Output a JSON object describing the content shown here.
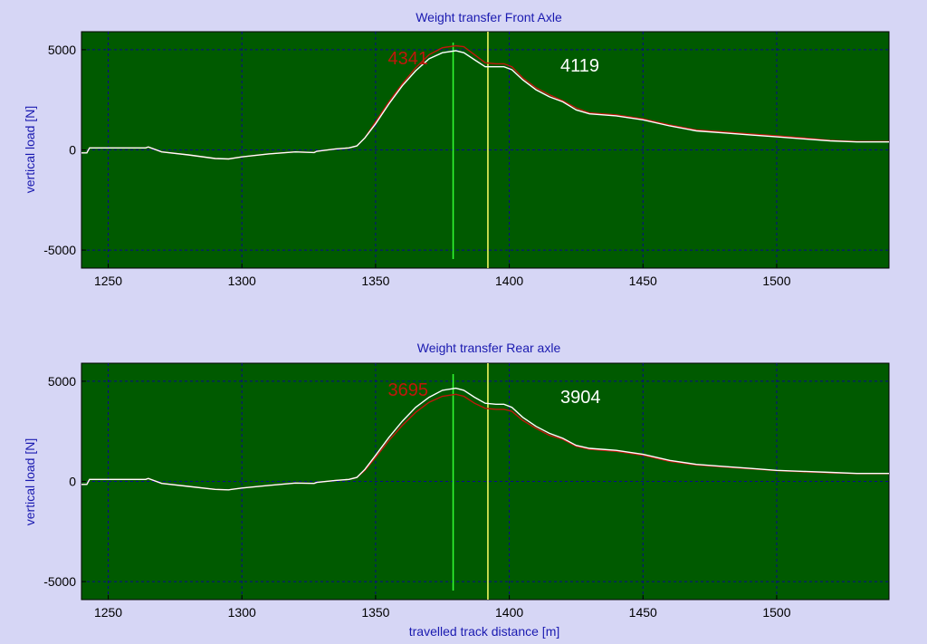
{
  "chart_data": [
    {
      "type": "line",
      "title": "Weight transfer Front Axle",
      "xlabel": "",
      "ylabel": "vertical load [N]",
      "xlim": [
        1240,
        1542
      ],
      "ylim": [
        -5900,
        5900
      ],
      "xticks": [
        1250,
        1300,
        1350,
        1400,
        1450,
        1500
      ],
      "xtick_labels": [
        "1250",
        "1300",
        "1350",
        "1400",
        "1450",
        "1500"
      ],
      "yticks": [
        5000,
        0,
        -5000
      ],
      "ytick_labels": [
        "5000",
        "0",
        "-5000"
      ],
      "grid": true,
      "colors": {
        "background": "#005a00",
        "series_white": "#ffffff",
        "series_red": "#c0170c",
        "cursor_green": "#33ff33",
        "cursor_yellow": "#ffff66"
      },
      "series": [
        {
          "color": "white",
          "x": [
            1240,
            1242,
            1243,
            1264,
            1265,
            1270,
            1280,
            1290,
            1295,
            1300,
            1310,
            1320,
            1327,
            1328,
            1335,
            1340,
            1343,
            1346,
            1350,
            1355,
            1360,
            1365,
            1370,
            1375,
            1380,
            1383,
            1387,
            1391,
            1395,
            1398,
            1401,
            1405,
            1410,
            1415,
            1420,
            1425,
            1430,
            1440,
            1450,
            1460,
            1470,
            1480,
            1490,
            1500,
            1510,
            1520,
            1530,
            1542
          ],
          "y": [
            -150,
            -150,
            100,
            100,
            150,
            -100,
            -250,
            -430,
            -450,
            -350,
            -200,
            -100,
            -130,
            -70,
            50,
            100,
            200,
            600,
            1300,
            2300,
            3200,
            3950,
            4550,
            4850,
            4950,
            4850,
            4500,
            4150,
            4150,
            4150,
            4000,
            3500,
            3000,
            2650,
            2400,
            2000,
            1800,
            1700,
            1500,
            1200,
            950,
            850,
            750,
            650,
            550,
            450,
            400,
            400
          ]
        },
        {
          "color": "red",
          "x": [
            1240,
            1242,
            1243,
            1264,
            1265,
            1270,
            1280,
            1290,
            1295,
            1300,
            1310,
            1320,
            1327,
            1328,
            1335,
            1340,
            1343,
            1346,
            1350,
            1355,
            1360,
            1365,
            1370,
            1375,
            1380,
            1383,
            1387,
            1391,
            1395,
            1398,
            1401,
            1405,
            1410,
            1415,
            1420,
            1425,
            1430,
            1440,
            1450,
            1460,
            1470,
            1480,
            1490,
            1500,
            1510,
            1520,
            1530,
            1542
          ],
          "y": [
            -150,
            -150,
            100,
            100,
            150,
            -100,
            -250,
            -430,
            -450,
            -350,
            -200,
            -100,
            -130,
            -70,
            50,
            100,
            200,
            600,
            1400,
            2400,
            3300,
            4100,
            4750,
            5100,
            5200,
            5150,
            4750,
            4350,
            4300,
            4300,
            4150,
            3600,
            3100,
            2750,
            2450,
            2100,
            1850,
            1750,
            1550,
            1250,
            1000,
            900,
            800,
            700,
            600,
            480,
            420,
            420
          ]
        }
      ],
      "cursors": [
        {
          "x": 1379,
          "color": "green",
          "label": "4341",
          "label_color": "red"
        },
        {
          "x": 1392,
          "color": "yellow",
          "label": "4119",
          "label_color": "white"
        }
      ]
    },
    {
      "type": "line",
      "title": "Weight transfer Rear axle",
      "xlabel": "travelled track distance [m]",
      "ylabel": "vertical load [N]",
      "xlim": [
        1240,
        1542
      ],
      "ylim": [
        -5900,
        5900
      ],
      "xticks": [
        1250,
        1300,
        1350,
        1400,
        1450,
        1500
      ],
      "xtick_labels": [
        "1250",
        "1300",
        "1350",
        "1400",
        "1450",
        "1500"
      ],
      "yticks": [
        5000,
        0,
        -5000
      ],
      "ytick_labels": [
        "5000",
        "0",
        "-5000"
      ],
      "grid": true,
      "colors": {
        "background": "#005a00",
        "series_white": "#ffffff",
        "series_red": "#c0170c",
        "cursor_green": "#33ff33",
        "cursor_yellow": "#ffff66"
      },
      "series": [
        {
          "color": "white",
          "x": [
            1240,
            1242,
            1243,
            1264,
            1265,
            1270,
            1280,
            1290,
            1295,
            1300,
            1310,
            1320,
            1327,
            1328,
            1335,
            1340,
            1343,
            1346,
            1350,
            1355,
            1360,
            1365,
            1370,
            1375,
            1380,
            1383,
            1387,
            1391,
            1395,
            1398,
            1401,
            1405,
            1410,
            1415,
            1420,
            1425,
            1430,
            1440,
            1450,
            1460,
            1470,
            1480,
            1490,
            1500,
            1510,
            1520,
            1530,
            1542
          ],
          "y": [
            -150,
            -150,
            100,
            100,
            150,
            -100,
            -250,
            -400,
            -420,
            -330,
            -200,
            -80,
            -100,
            -50,
            50,
            100,
            200,
            600,
            1300,
            2200,
            3000,
            3700,
            4200,
            4550,
            4650,
            4550,
            4200,
            3900,
            3850,
            3850,
            3700,
            3200,
            2750,
            2400,
            2150,
            1800,
            1650,
            1550,
            1350,
            1050,
            850,
            750,
            650,
            550,
            500,
            450,
            400,
            400
          ]
        },
        {
          "color": "red",
          "x": [
            1240,
            1242,
            1243,
            1264,
            1265,
            1270,
            1280,
            1290,
            1295,
            1300,
            1310,
            1320,
            1327,
            1328,
            1335,
            1340,
            1343,
            1346,
            1350,
            1355,
            1360,
            1365,
            1370,
            1375,
            1380,
            1383,
            1387,
            1391,
            1395,
            1398,
            1401,
            1405,
            1410,
            1415,
            1420,
            1425,
            1430,
            1440,
            1450,
            1460,
            1470,
            1480,
            1490,
            1500,
            1510,
            1520,
            1530,
            1542
          ],
          "y": [
            -150,
            -150,
            100,
            100,
            150,
            -100,
            -250,
            -400,
            -420,
            -330,
            -200,
            -80,
            -100,
            -50,
            50,
            100,
            200,
            550,
            1200,
            2050,
            2800,
            3450,
            3950,
            4250,
            4350,
            4250,
            3900,
            3650,
            3600,
            3600,
            3500,
            3050,
            2650,
            2300,
            2100,
            1750,
            1600,
            1500,
            1300,
            1000,
            820,
            720,
            630,
            540,
            480,
            430,
            390,
            390
          ]
        }
      ],
      "cursors": [
        {
          "x": 1379,
          "color": "green",
          "label": "3695",
          "label_color": "red"
        },
        {
          "x": 1392,
          "color": "yellow",
          "label": "3904",
          "label_color": "white"
        }
      ]
    }
  ]
}
